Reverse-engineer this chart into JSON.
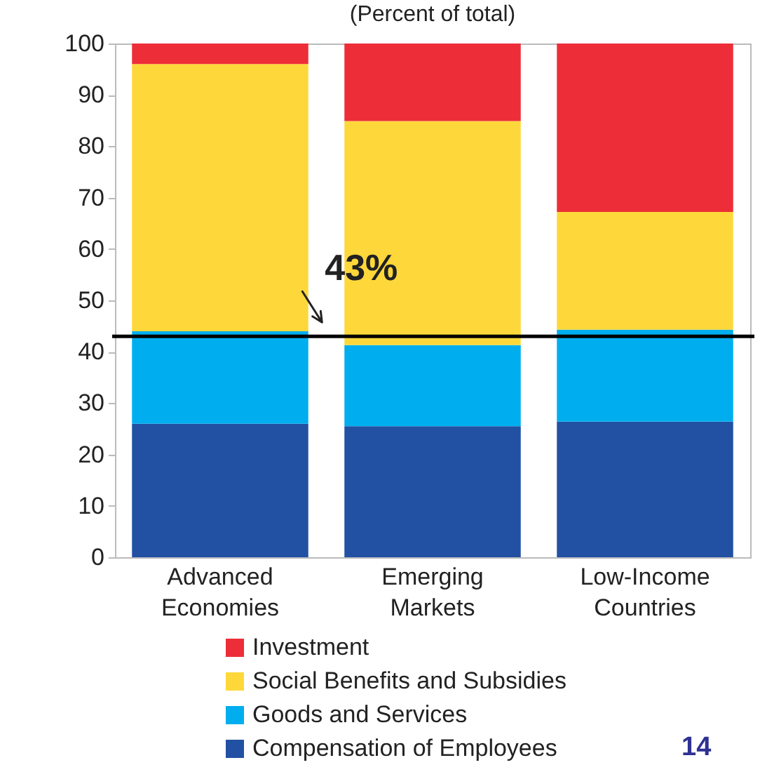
{
  "chart_data": {
    "type": "bar",
    "title": "(Percent of total)",
    "categories": [
      "Advanced Economies",
      "Emerging Markets",
      "Low-Income Countries"
    ],
    "stacked": true,
    "series": [
      {
        "name": "Compensation of Employees",
        "color": "#2251a3",
        "values": [
          26,
          25.5,
          26.4
        ]
      },
      {
        "name": "Goods and Services",
        "color": "#00aeef",
        "values": [
          18,
          15.8,
          17.9
        ]
      },
      {
        "name": "Social Benefits and Subsidies",
        "color": "#fed83a",
        "values": [
          52,
          43.6,
          22.9
        ]
      },
      {
        "name": "Investment",
        "color": "#ed2e38",
        "values": [
          4,
          15.1,
          32.8
        ]
      }
    ],
    "ylim": [
      0,
      100
    ],
    "yticks": [
      0,
      10,
      20,
      30,
      40,
      50,
      60,
      70,
      80,
      90,
      100
    ],
    "legend": "bottom",
    "ref_lines": [
      {
        "axis": "y",
        "value": 43,
        "label": "43%",
        "color": "#000000"
      }
    ],
    "annotations": [
      "14"
    ]
  }
}
